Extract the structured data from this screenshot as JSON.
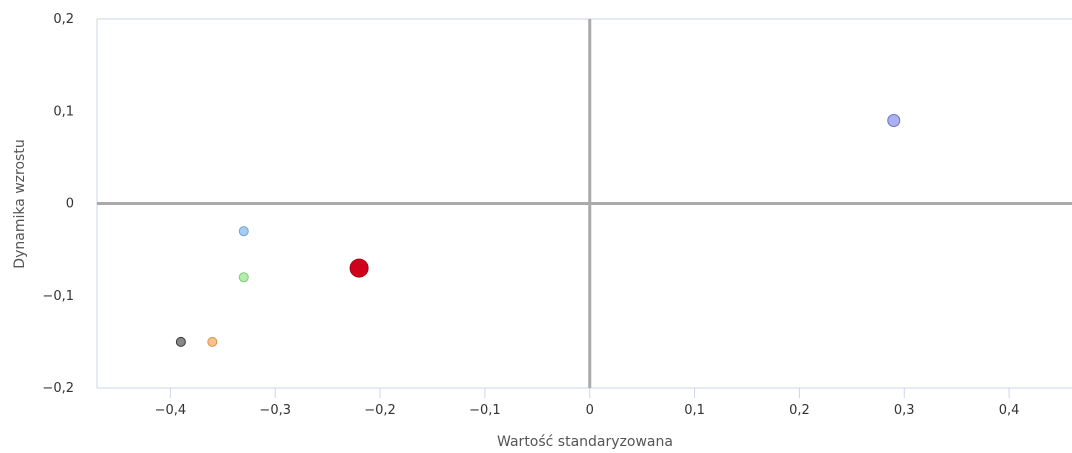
{
  "chart_data": {
    "type": "scatter",
    "title": "",
    "xlabel": "Wartość standaryzowana",
    "ylabel": "Dynamika wzrostu",
    "xlim": [
      -0.47,
      0.46
    ],
    "ylim": [
      -0.2,
      0.2
    ],
    "x_ticks": [
      {
        "value": -0.4,
        "label": "−0,4"
      },
      {
        "value": -0.3,
        "label": "−0,3"
      },
      {
        "value": -0.2,
        "label": "−0,2"
      },
      {
        "value": -0.1,
        "label": "−0,1"
      },
      {
        "value": 0,
        "label": "0"
      },
      {
        "value": 0.1,
        "label": "0,1"
      },
      {
        "value": 0.2,
        "label": "0,2"
      },
      {
        "value": 0.3,
        "label": "0,3"
      },
      {
        "value": 0.4,
        "label": "0,4"
      }
    ],
    "y_ticks": [
      {
        "value": 0.2,
        "label": "0,2"
      },
      {
        "value": 0.1,
        "label": "0,1"
      },
      {
        "value": 0,
        "label": "0"
      },
      {
        "value": -0.1,
        "label": "−0,1"
      },
      {
        "value": -0.2,
        "label": "−0,2"
      }
    ],
    "grid": false,
    "points": [
      {
        "x": 0.29,
        "y": 0.09,
        "color": "#aab0f0",
        "stroke": "#6a72c8",
        "size": "medium"
      },
      {
        "x": -0.33,
        "y": -0.03,
        "color": "#a8cdf2",
        "stroke": "#6fa3d6",
        "size": "small"
      },
      {
        "x": -0.33,
        "y": -0.08,
        "color": "#b5ecb0",
        "stroke": "#7ccc74",
        "size": "small"
      },
      {
        "x": -0.22,
        "y": -0.07,
        "color": "#d0021b",
        "stroke": "#a80015",
        "size": "large"
      },
      {
        "x": -0.39,
        "y": -0.15,
        "color": "#888888",
        "stroke": "#333333",
        "size": "small"
      },
      {
        "x": -0.36,
        "y": -0.15,
        "color": "#f6c08c",
        "stroke": "#e0924a",
        "size": "small"
      }
    ],
    "colors": {
      "quadrant_line": "#aaaaaa",
      "axis_line": "#ccd6eb"
    }
  }
}
